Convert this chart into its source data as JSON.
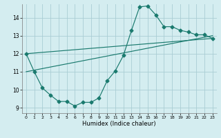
{
  "title": "",
  "xlabel": "Humidex (Indice chaleur)",
  "background_color": "#d4edf0",
  "grid_color": "#aacdd4",
  "line_color": "#1a7a6e",
  "xlim": [
    -0.5,
    23.5
  ],
  "ylim": [
    8.7,
    14.75
  ],
  "yticks": [
    9,
    10,
    11,
    12,
    13,
    14
  ],
  "xticks": [
    0,
    1,
    2,
    3,
    4,
    5,
    6,
    7,
    8,
    9,
    10,
    11,
    12,
    13,
    14,
    15,
    16,
    17,
    18,
    19,
    20,
    21,
    22,
    23
  ],
  "line1_x": [
    0,
    1,
    2,
    3,
    4,
    5,
    6,
    7,
    8,
    9,
    10,
    11,
    12,
    13,
    14,
    15,
    16,
    17,
    18,
    19,
    20,
    21,
    22,
    23
  ],
  "line1_y": [
    12.0,
    11.0,
    10.1,
    9.7,
    9.35,
    9.35,
    9.1,
    9.3,
    9.3,
    9.55,
    10.5,
    11.05,
    11.9,
    13.3,
    14.6,
    14.65,
    14.15,
    13.5,
    13.5,
    13.3,
    13.2,
    13.05,
    13.05,
    12.85
  ],
  "line2_x": [
    0,
    23
  ],
  "line2_y": [
    12.0,
    12.85
  ],
  "line3_x": [
    0,
    23
  ],
  "line3_y": [
    11.0,
    13.0
  ],
  "marker_size": 2.5
}
